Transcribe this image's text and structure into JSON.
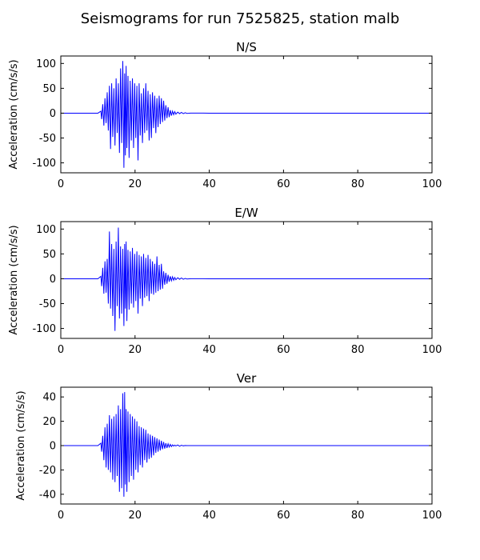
{
  "figure": {
    "suptitle": "Seismograms for run 7525825, station malb"
  },
  "style": {
    "line_color": "#0000ff",
    "axes_color": "#000000",
    "background": "#ffffff"
  },
  "chart_data": [
    {
      "type": "line",
      "title": "N/S",
      "xlabel": "",
      "ylabel": "Acceleration (cm/s/s)",
      "xlim": [
        0,
        100
      ],
      "ylim": [
        -120,
        115
      ],
      "xticks": [
        0,
        20,
        40,
        60,
        80,
        100
      ],
      "yticks": [
        -100,
        -50,
        0,
        50,
        100
      ],
      "grid": false,
      "series": [
        {
          "x": [
            0,
            10,
            10.8,
            11,
            11.3,
            11.6,
            11.9,
            12.2,
            12.5,
            12.8,
            13.1,
            13.4,
            13.7,
            14,
            14.3,
            14.6,
            14.9,
            15.2,
            15.5,
            15.8,
            16.1,
            16.4,
            16.7,
            17,
            17.2,
            17.4,
            17.6,
            17.8,
            18.1,
            18.4,
            18.7,
            19,
            19.3,
            19.6,
            19.9,
            20.2,
            20.5,
            20.8,
            21.1,
            21.4,
            21.7,
            22,
            22.3,
            22.6,
            22.9,
            23.2,
            23.5,
            23.8,
            24.1,
            24.4,
            24.7,
            25,
            25.3,
            25.6,
            25.9,
            26.2,
            26.5,
            26.8,
            27.1,
            27.4,
            27.7,
            28,
            28.3,
            28.6,
            28.9,
            29.2,
            29.5,
            29.8,
            30.1,
            30.4,
            30.7,
            31,
            31.5,
            32,
            32.5,
            33,
            33.5,
            34,
            35,
            40,
            100
          ],
          "y": [
            0,
            0,
            4,
            -12,
            18,
            -25,
            30,
            -20,
            42,
            -35,
            55,
            -72,
            60,
            -48,
            50,
            -65,
            70,
            -40,
            60,
            -80,
            90,
            -60,
            105,
            -110,
            80,
            -85,
            95,
            -70,
            75,
            -90,
            65,
            -55,
            70,
            -70,
            60,
            -50,
            55,
            -95,
            60,
            -45,
            40,
            -60,
            50,
            -40,
            60,
            -35,
            45,
            -55,
            38,
            -50,
            42,
            -30,
            35,
            -40,
            30,
            -28,
            35,
            -22,
            30,
            -18,
            25,
            -15,
            16,
            -10,
            12,
            -8,
            6,
            -5,
            4,
            -3,
            3,
            -2,
            2,
            -1,
            1.5,
            -1,
            0.8,
            -0.5,
            0.2,
            0,
            0
          ]
        }
      ]
    },
    {
      "type": "line",
      "title": "E/W",
      "xlabel": "",
      "ylabel": "Acceleration (cm/s/s)",
      "xlim": [
        0,
        100
      ],
      "ylim": [
        -120,
        115
      ],
      "xticks": [
        0,
        20,
        40,
        60,
        80,
        100
      ],
      "yticks": [
        -100,
        -50,
        0,
        50,
        100
      ],
      "grid": false,
      "series": [
        {
          "x": [
            0,
            10,
            10.8,
            11,
            11.3,
            11.6,
            11.9,
            12.2,
            12.5,
            12.8,
            13.1,
            13.4,
            13.7,
            14,
            14.3,
            14.6,
            14.9,
            15.2,
            15.5,
            15.8,
            16.1,
            16.4,
            16.7,
            17,
            17.2,
            17.4,
            17.6,
            17.8,
            18.1,
            18.4,
            18.7,
            19,
            19.3,
            19.6,
            19.9,
            20.2,
            20.5,
            20.8,
            21.1,
            21.4,
            21.7,
            22,
            22.3,
            22.6,
            22.9,
            23.2,
            23.5,
            23.8,
            24.1,
            24.4,
            24.7,
            25,
            25.3,
            25.6,
            25.9,
            26.2,
            26.5,
            26.8,
            27.1,
            27.4,
            27.7,
            28,
            28.3,
            28.6,
            28.9,
            29.2,
            29.5,
            29.8,
            30.1,
            30.4,
            30.7,
            31,
            31.5,
            32,
            32.5,
            33,
            33.5,
            34,
            35,
            40,
            100
          ],
          "y": [
            0,
            0,
            5,
            -15,
            22,
            -30,
            35,
            -28,
            40,
            -50,
            95,
            -60,
            70,
            -75,
            60,
            -105,
            75,
            -55,
            103,
            -80,
            65,
            -70,
            60,
            -95,
            70,
            -60,
            75,
            -85,
            58,
            -62,
            55,
            -50,
            62,
            -58,
            50,
            -45,
            55,
            -70,
            48,
            -40,
            45,
            -55,
            50,
            -38,
            42,
            -35,
            48,
            -45,
            40,
            -30,
            35,
            -32,
            30,
            -28,
            45,
            -25,
            28,
            -22,
            30,
            -20,
            15,
            -12,
            12,
            -10,
            8,
            -6,
            5,
            -4,
            4,
            -3,
            2.5,
            -2,
            2,
            -1,
            1.5,
            -1,
            0.6,
            -0.4,
            0.2,
            0,
            0
          ]
        }
      ]
    },
    {
      "type": "line",
      "title": "Ver",
      "xlabel": "",
      "ylabel": "Acceleration (cm/s/s)",
      "xlim": [
        0,
        100
      ],
      "ylim": [
        -48,
        48
      ],
      "xticks": [
        0,
        20,
        40,
        60,
        80,
        100
      ],
      "yticks": [
        -40,
        -20,
        0,
        20,
        40
      ],
      "grid": false,
      "series": [
        {
          "x": [
            0,
            10,
            10.8,
            11,
            11.3,
            11.6,
            11.9,
            12.2,
            12.5,
            12.8,
            13.1,
            13.4,
            13.7,
            14,
            14.3,
            14.6,
            14.9,
            15.2,
            15.5,
            15.8,
            16.1,
            16.4,
            16.7,
            17,
            17.2,
            17.4,
            17.6,
            17.8,
            18.1,
            18.4,
            18.7,
            19,
            19.3,
            19.6,
            19.9,
            20.2,
            20.5,
            20.8,
            21.1,
            21.4,
            21.7,
            22,
            22.3,
            22.6,
            22.9,
            23.2,
            23.5,
            23.8,
            24.1,
            24.4,
            24.7,
            25,
            25.3,
            25.6,
            25.9,
            26.2,
            26.5,
            26.8,
            27.1,
            27.4,
            27.7,
            28,
            28.3,
            28.6,
            28.9,
            29.2,
            29.5,
            29.8,
            30.1,
            30.4,
            30.7,
            31,
            31.5,
            32,
            32.5,
            33,
            33.5,
            34,
            35,
            40,
            100
          ],
          "y": [
            0,
            0,
            2,
            -5,
            8,
            -12,
            15,
            -18,
            18,
            -20,
            25,
            -22,
            22,
            -28,
            24,
            -30,
            26,
            -25,
            33,
            -38,
            30,
            -35,
            43,
            -42,
            44,
            -32,
            30,
            -38,
            28,
            -30,
            26,
            -25,
            24,
            -28,
            22,
            -20,
            20,
            -22,
            16,
            -16,
            15,
            -18,
            14,
            -12,
            13,
            -14,
            10,
            -11,
            9,
            -10,
            8,
            -8,
            7,
            -6,
            6,
            -5,
            5,
            -4,
            4,
            -3,
            3,
            -2.5,
            2,
            -2,
            1.5,
            -1.2,
            1,
            -0.8,
            0.6,
            -0.4,
            0.4,
            -0.3,
            0.5,
            -0.5,
            0.3,
            -0.2,
            0.1,
            0,
            0,
            0,
            0
          ]
        }
      ]
    }
  ]
}
